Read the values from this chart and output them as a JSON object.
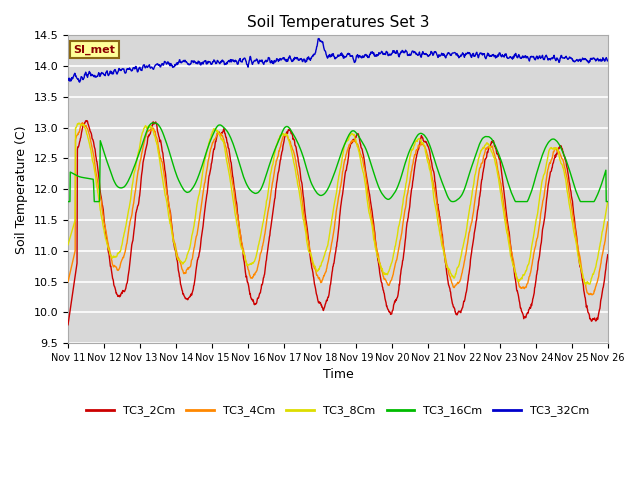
{
  "title": "Soil Temperatures Set 3",
  "xlabel": "Time",
  "ylabel": "Soil Temperature (C)",
  "ylim": [
    9.5,
    14.5
  ],
  "bg_color": "#d8d8d8",
  "grid_color": "#f0f0f0",
  "series_colors": {
    "TC3_2Cm": "#cc0000",
    "TC3_4Cm": "#ff8800",
    "TC3_8Cm": "#dddd00",
    "TC3_16Cm": "#00bb00",
    "TC3_32Cm": "#0000cc"
  },
  "x_tick_labels": [
    "Nov 11",
    "Nov 12",
    "Nov 13",
    "Nov 14",
    "Nov 15",
    "Nov 16",
    "Nov 17",
    "Nov 18",
    "Nov 19",
    "Nov 20",
    "Nov 21",
    "Nov 22",
    "Nov 23",
    "Nov 24",
    "Nov 25",
    "Nov 26"
  ],
  "yticks": [
    9.5,
    10.0,
    10.5,
    11.0,
    11.5,
    12.0,
    12.5,
    13.0,
    13.5,
    14.0,
    14.5
  ],
  "legend_label": "SI_met",
  "n_points": 1440,
  "line_width": 1.0
}
